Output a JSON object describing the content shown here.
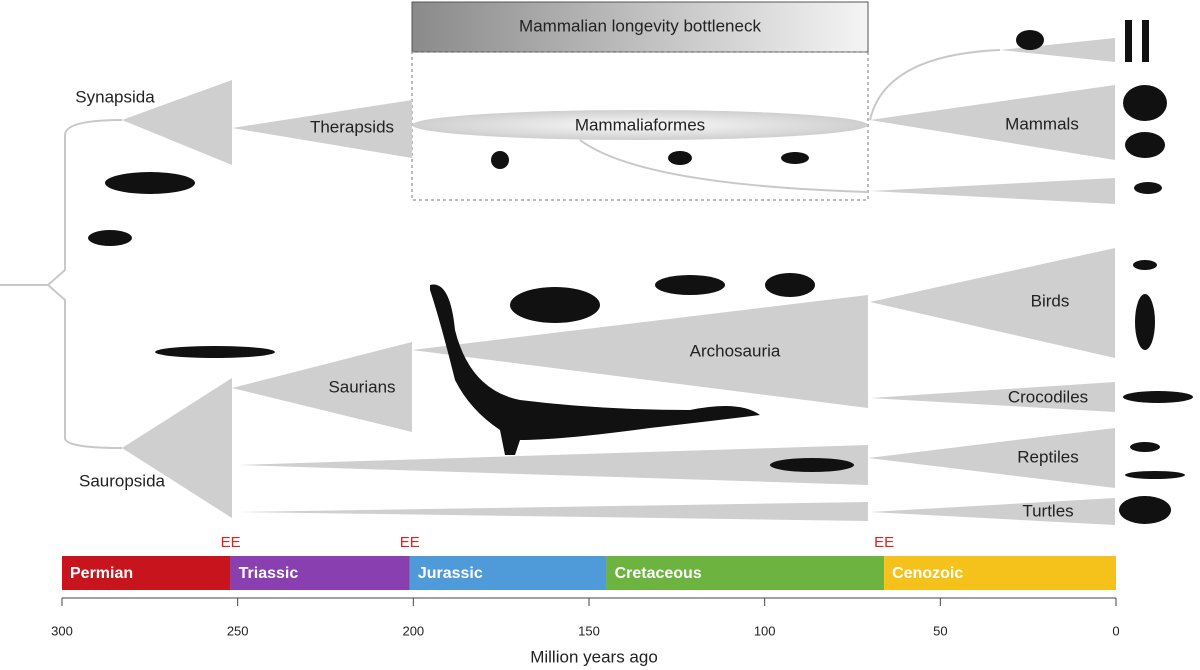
{
  "header": {
    "title": "Mammalian longevity bottleneck"
  },
  "clades": {
    "synapsida": "Synapsida",
    "therapsids": "Therapsids",
    "mammaliaformes": "Mammaliaformes",
    "mammals": "Mammals",
    "sauropsida": "Sauropsida",
    "saurians": "Saurians",
    "archosauria": "Archosauria",
    "birds": "Birds",
    "crocodiles": "Crocodiles",
    "reptiles": "Reptiles",
    "turtles": "Turtles"
  },
  "timescale": {
    "xlim": [
      300,
      0
    ],
    "xticks": [
      300,
      250,
      200,
      150,
      100,
      50,
      0
    ],
    "axis_label": "Million years ago",
    "periods": [
      {
        "name": "Permian",
        "start": 300,
        "end": 252,
        "color": "#c8141c"
      },
      {
        "name": "Triassic",
        "start": 252,
        "end": 201,
        "color": "#8a3fb0"
      },
      {
        "name": "Jurassic",
        "start": 201,
        "end": 145,
        "color": "#4f9bd9"
      },
      {
        "name": "Cretaceous",
        "start": 145,
        "end": 66,
        "color": "#6cb33f"
      },
      {
        "name": "Cenozoic",
        "start": 66,
        "end": 0,
        "color": "#f5c21b"
      }
    ],
    "extinction_events": [
      {
        "label": "EE",
        "value": 252
      },
      {
        "label": "EE",
        "value": 201
      },
      {
        "label": "EE",
        "value": 66
      }
    ]
  }
}
